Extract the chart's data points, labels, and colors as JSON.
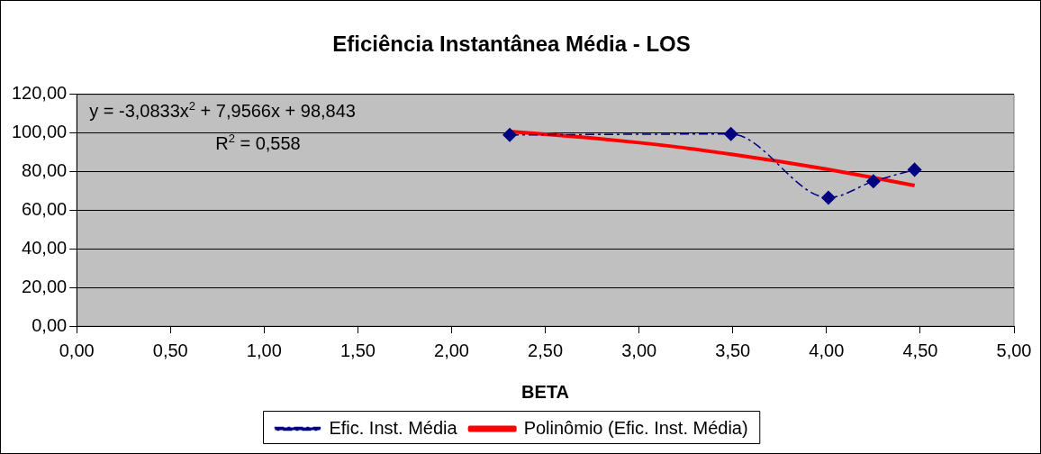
{
  "chart_data": {
    "type": "line",
    "title": "Eficiência Instantânea Média - LOS",
    "xlabel": "BETA",
    "annotations": [
      "y = -3,0833x$^{2}$ + 7,9566x + 98,843",
      "R$^{2}$ = 0,558"
    ],
    "x": [
      2.31,
      3.49,
      4.01,
      4.25,
      4.47
    ],
    "series": [
      {
        "name": "Efic. Inst. Média",
        "color": "#000080",
        "values": [
          99,
          99.5,
          66.5,
          75,
          81
        ],
        "marker": "diamond",
        "line_style": "dashed"
      },
      {
        "name": "Polinômio (Efic. Inst. Média)",
        "color": "#ff0000",
        "x": [
          2.31,
          2.5,
          2.75,
          3,
          3.25,
          3.5,
          3.75,
          4,
          4.25,
          4.47
        ],
        "values": [
          100.8,
          99.4,
          97.4,
          95,
          92.2,
          88.9,
          85.3,
          81.3,
          76.9,
          72.8
        ],
        "marker": "none",
        "line_style": "solid"
      }
    ],
    "xlim": [
      0,
      5
    ],
    "xticks": [
      {
        "value": 0,
        "label": "0,00"
      },
      {
        "value": 0.5,
        "label": "0,50"
      },
      {
        "value": 1,
        "label": "1,00"
      },
      {
        "value": 1.5,
        "label": "1,50"
      },
      {
        "value": 2,
        "label": "2,00"
      },
      {
        "value": 2.5,
        "label": "2,50"
      },
      {
        "value": 3,
        "label": "3,00"
      },
      {
        "value": 3.5,
        "label": "3,50"
      },
      {
        "value": 4,
        "label": "4,00"
      },
      {
        "value": 4.5,
        "label": "4,50"
      },
      {
        "value": 5,
        "label": "5,00"
      }
    ],
    "ylim": [
      0,
      120
    ],
    "yticks": [
      {
        "value": 0,
        "label": "0,00"
      },
      {
        "value": 20,
        "label": "20,00"
      },
      {
        "value": 40,
        "label": "40,00"
      },
      {
        "value": 60,
        "label": "60,00"
      },
      {
        "value": 80,
        "label": "80,00"
      },
      {
        "value": 100,
        "label": "100,00"
      },
      {
        "value": 120,
        "label": "120,00"
      }
    ],
    "grid": "y",
    "legend": "bottom"
  }
}
